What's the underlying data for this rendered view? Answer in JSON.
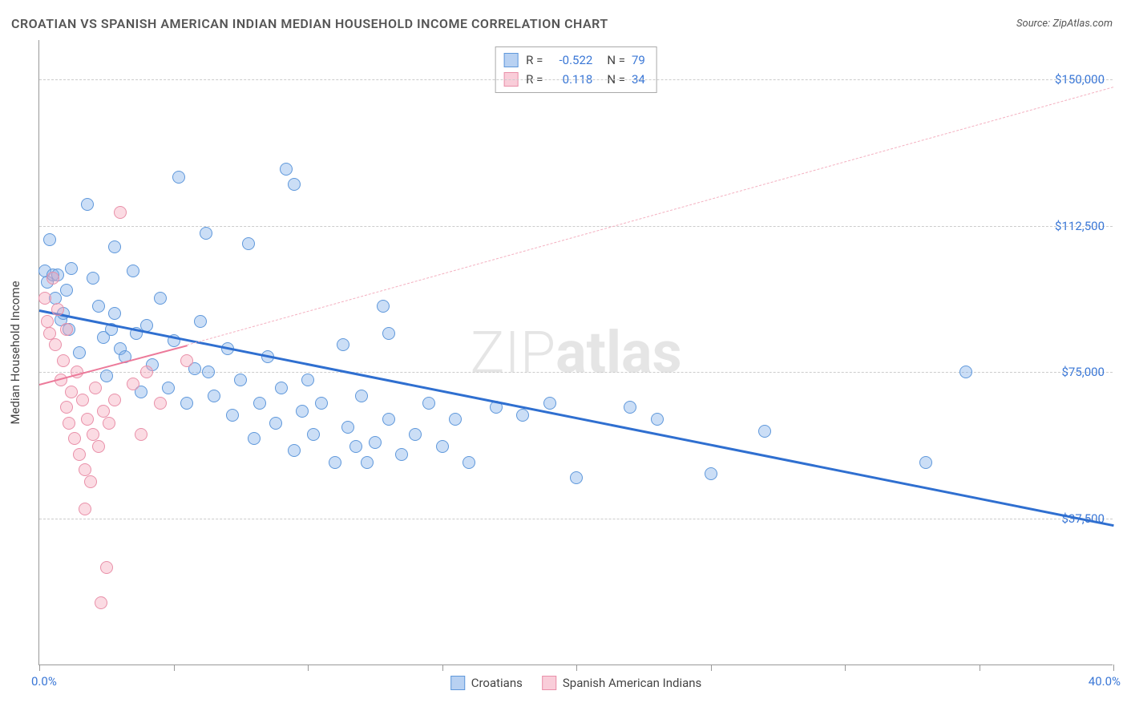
{
  "title": "CROATIAN VS SPANISH AMERICAN INDIAN MEDIAN HOUSEHOLD INCOME CORRELATION CHART",
  "source_label": "Source:",
  "source_value": "ZipAtlas.com",
  "watermark_thin": "ZIP",
  "watermark_bold": "atlas",
  "chart": {
    "type": "scatter",
    "xlim": [
      0,
      40
    ],
    "ylim": [
      0,
      160000
    ],
    "y_ticks": [
      37500,
      75000,
      112500,
      150000
    ],
    "y_tick_labels": [
      "$37,500",
      "$75,000",
      "$112,500",
      "$150,000"
    ],
    "x_ticks": [
      0,
      5,
      10,
      15,
      20,
      25,
      30,
      35,
      40
    ],
    "x_min_label": "0.0%",
    "x_max_label": "40.0%",
    "y_axis_label": "Median Household Income",
    "marker_radius": 8,
    "colors": {
      "blue_fill": "rgba(126,172,232,0.4)",
      "blue_stroke": "#5f98db",
      "pink_fill": "rgba(244,164,185,0.4)",
      "pink_stroke": "#e990a9",
      "trend_blue": "#2f6fd0",
      "trend_pink": "#ec7a9a",
      "trend_pink_dash": "#f4b0c0",
      "grid": "#cccccc",
      "axis": "#999999",
      "tick_text": "#3a77d6",
      "background": "#ffffff"
    },
    "series": [
      {
        "name": "Croatians",
        "class": "blue",
        "R": "-0.522",
        "N": "79",
        "points": [
          [
            0.2,
            101000
          ],
          [
            0.3,
            98000
          ],
          [
            0.4,
            109000
          ],
          [
            0.5,
            100000
          ],
          [
            0.6,
            94000
          ],
          [
            0.7,
            100000
          ],
          [
            0.8,
            88500
          ],
          [
            0.9,
            90000
          ],
          [
            1.0,
            96000
          ],
          [
            1.1,
            86000
          ],
          [
            1.2,
            101500
          ],
          [
            1.5,
            80000
          ],
          [
            1.8,
            118000
          ],
          [
            2.0,
            99000
          ],
          [
            2.2,
            92000
          ],
          [
            2.4,
            84000
          ],
          [
            2.5,
            74000
          ],
          [
            2.7,
            86000
          ],
          [
            2.8,
            107000
          ],
          [
            2.8,
            90000
          ],
          [
            3.0,
            81000
          ],
          [
            3.2,
            79000
          ],
          [
            3.5,
            101000
          ],
          [
            3.6,
            85000
          ],
          [
            3.8,
            70000
          ],
          [
            4.0,
            87000
          ],
          [
            4.2,
            77000
          ],
          [
            4.5,
            94000
          ],
          [
            4.8,
            71000
          ],
          [
            5.0,
            83000
          ],
          [
            5.2,
            125000
          ],
          [
            5.5,
            67000
          ],
          [
            5.8,
            76000
          ],
          [
            6.0,
            88000
          ],
          [
            6.2,
            110500
          ],
          [
            6.3,
            75000
          ],
          [
            6.5,
            69000
          ],
          [
            7.0,
            81000
          ],
          [
            7.2,
            64000
          ],
          [
            7.5,
            73000
          ],
          [
            7.8,
            108000
          ],
          [
            8.0,
            58000
          ],
          [
            8.2,
            67000
          ],
          [
            8.5,
            79000
          ],
          [
            8.8,
            62000
          ],
          [
            9.0,
            71000
          ],
          [
            9.2,
            127000
          ],
          [
            9.5,
            55000
          ],
          [
            9.8,
            65000
          ],
          [
            9.5,
            123000
          ],
          [
            10.0,
            73000
          ],
          [
            10.2,
            59000
          ],
          [
            10.5,
            67000
          ],
          [
            11.0,
            52000
          ],
          [
            11.3,
            82000
          ],
          [
            11.5,
            61000
          ],
          [
            11.8,
            56000
          ],
          [
            12.0,
            69000
          ],
          [
            12.2,
            52000
          ],
          [
            12.5,
            57000
          ],
          [
            12.8,
            92000
          ],
          [
            13.0,
            63000
          ],
          [
            13.0,
            85000
          ],
          [
            13.5,
            54000
          ],
          [
            14.0,
            59000
          ],
          [
            14.5,
            67000
          ],
          [
            15.0,
            56000
          ],
          [
            15.5,
            63000
          ],
          [
            16.0,
            52000
          ],
          [
            17.0,
            66000
          ],
          [
            18.0,
            64000
          ],
          [
            19.0,
            67000
          ],
          [
            20.0,
            48000
          ],
          [
            22.0,
            66000
          ],
          [
            23.0,
            63000
          ],
          [
            25.0,
            49000
          ],
          [
            27.0,
            60000
          ],
          [
            33.0,
            52000
          ],
          [
            34.5,
            75000
          ]
        ],
        "trend": {
          "x1": 0,
          "y1": 91000,
          "x2": 40,
          "y2": 36000,
          "style": "blue"
        }
      },
      {
        "name": "Spanish American Indians",
        "class": "pink",
        "R": "0.118",
        "N": "34",
        "points": [
          [
            0.2,
            94000
          ],
          [
            0.3,
            88000
          ],
          [
            0.4,
            85000
          ],
          [
            0.5,
            99000
          ],
          [
            0.6,
            82000
          ],
          [
            0.7,
            91000
          ],
          [
            0.8,
            73000
          ],
          [
            0.9,
            78000
          ],
          [
            1.0,
            66000
          ],
          [
            1.0,
            86000
          ],
          [
            1.1,
            62000
          ],
          [
            1.2,
            70000
          ],
          [
            1.3,
            58000
          ],
          [
            1.4,
            75000
          ],
          [
            1.5,
            54000
          ],
          [
            1.6,
            68000
          ],
          [
            1.7,
            50000
          ],
          [
            1.7,
            40000
          ],
          [
            1.8,
            63000
          ],
          [
            1.9,
            47000
          ],
          [
            2.0,
            59000
          ],
          [
            2.1,
            71000
          ],
          [
            2.2,
            56000
          ],
          [
            2.4,
            65000
          ],
          [
            2.5,
            25000
          ],
          [
            2.6,
            62000
          ],
          [
            2.8,
            68000
          ],
          [
            3.0,
            116000
          ],
          [
            3.5,
            72000
          ],
          [
            3.8,
            59000
          ],
          [
            4.0,
            75000
          ],
          [
            4.5,
            67000
          ],
          [
            5.5,
            78000
          ],
          [
            2.3,
            16000
          ]
        ],
        "trend_solid": {
          "x1": 0,
          "y1": 72000,
          "x2": 5.5,
          "y2": 82000,
          "style": "pink-solid"
        },
        "trend_dash": {
          "x1": 5.5,
          "y1": 82000,
          "x2": 40,
          "y2": 148000,
          "style": "pink-dash"
        }
      }
    ]
  },
  "stats_box": [
    {
      "swatch": "blue",
      "r_label": "R =",
      "r_value": "-0.522",
      "n_label": "N =",
      "n_value": "79"
    },
    {
      "swatch": "pink",
      "r_label": "R =",
      "r_value": "0.118",
      "n_label": "N =",
      "n_value": "34"
    }
  ],
  "legend": [
    {
      "swatch": "blue",
      "label": "Croatians"
    },
    {
      "swatch": "pink",
      "label": "Spanish American Indians"
    }
  ]
}
